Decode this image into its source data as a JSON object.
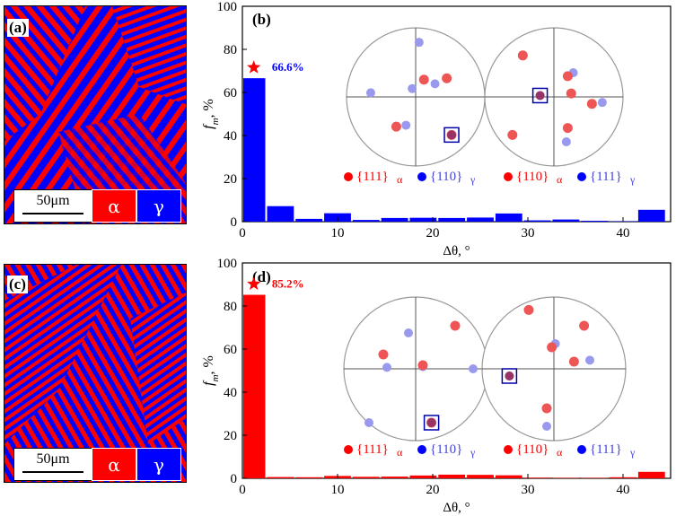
{
  "panels": {
    "a": {
      "label": "(a)",
      "scale_bar": "50μm",
      "phase_alpha": "α",
      "phase_gamma": "γ"
    },
    "c": {
      "label": "(c)",
      "scale_bar": "50μm",
      "phase_alpha": "α",
      "phase_gamma": "γ"
    }
  },
  "colors": {
    "alpha": "#ff0000",
    "gamma": "#0000ff",
    "alpha_light": "#ee5555",
    "gamma_light": "#9999ee"
  },
  "chart_data": [
    {
      "type": "bar",
      "panel": "(b)",
      "xlabel": "Δθ, °",
      "ylabel_main": "f",
      "ylabel_sub": "m",
      "ylabel_unit": ", %",
      "xlim": [
        0,
        45
      ],
      "ylim": [
        0,
        100
      ],
      "xticks": [
        0,
        10,
        20,
        30,
        40
      ],
      "yticks": [
        0,
        20,
        40,
        60,
        80,
        100
      ],
      "bar_color": "#0000ff",
      "bins": [
        [
          0,
          2.5
        ],
        [
          2.5,
          5.5
        ],
        [
          5.5,
          8.5
        ],
        [
          8.5,
          11.5
        ],
        [
          11.5,
          14.5
        ],
        [
          14.5,
          17.5
        ],
        [
          17.5,
          20.5
        ],
        [
          20.5,
          23.5
        ],
        [
          23.5,
          26.5
        ],
        [
          26.5,
          29.5
        ],
        [
          29.5,
          32.5
        ],
        [
          32.5,
          35.5
        ],
        [
          35.5,
          38.5
        ],
        [
          38.5,
          41.5
        ],
        [
          41.5,
          44.5
        ]
      ],
      "values": [
        66.6,
        7.2,
        1.3,
        3.9,
        0.8,
        1.7,
        1.8,
        1.7,
        1.9,
        3.8,
        0.6,
        1.0,
        0.4,
        0.2,
        5.5
      ],
      "annotation": "66.6%",
      "annotation_color": "#0000ff",
      "legend": {
        "left_group": "{111}",
        "left_sub_1": "α",
        "right_group_1": "{110}",
        "left_sub_2": "γ",
        "left_group_2": "{110}",
        "sub_a": "α",
        "right_group_2": "{111}",
        "sub_g": "γ"
      },
      "pole_figures": [
        {
          "red": [
            [
              0.12,
              0.25
            ],
            [
              0.45,
              0.27
            ],
            [
              -0.28,
              -0.43
            ],
            [
              0.52,
              -0.55
            ]
          ],
          "blue": [
            [
              0.05,
              0.79
            ],
            [
              -0.05,
              0.12
            ],
            [
              -0.65,
              0.06
            ],
            [
              0.28,
              0.19
            ],
            [
              -0.14,
              -0.41
            ]
          ],
          "boxed": [
            0.52,
            -0.55
          ]
        },
        {
          "red": [
            [
              -0.45,
              0.6
            ],
            [
              0.2,
              0.3
            ],
            [
              0.25,
              0.05
            ],
            [
              0.55,
              -0.1
            ],
            [
              -0.6,
              -0.55
            ],
            [
              0.2,
              -0.45
            ]
          ],
          "blue": [
            [
              0.28,
              0.35
            ],
            [
              0.7,
              -0.08
            ],
            [
              0.18,
              -0.65
            ],
            [
              -0.2,
              0.02
            ]
          ],
          "boxed": [
            -0.2,
            0.02
          ]
        }
      ]
    },
    {
      "type": "bar",
      "panel": "(d)",
      "xlabel": "Δθ, °",
      "ylabel_main": "f",
      "ylabel_sub": "m",
      "ylabel_unit": ", %",
      "xlim": [
        0,
        45
      ],
      "ylim": [
        0,
        100
      ],
      "xticks": [
        0,
        10,
        20,
        30,
        40
      ],
      "yticks": [
        0,
        20,
        40,
        60,
        80,
        100
      ],
      "bar_color": "#ff0000",
      "bins": [
        [
          0,
          2.5
        ],
        [
          2.5,
          5.5
        ],
        [
          5.5,
          8.5
        ],
        [
          8.5,
          11.5
        ],
        [
          11.5,
          14.5
        ],
        [
          14.5,
          17.5
        ],
        [
          17.5,
          20.5
        ],
        [
          20.5,
          23.5
        ],
        [
          23.5,
          26.5
        ],
        [
          26.5,
          29.5
        ],
        [
          29.5,
          32.5
        ],
        [
          32.5,
          35.5
        ],
        [
          35.5,
          38.5
        ],
        [
          38.5,
          41.5
        ],
        [
          41.5,
          44.5
        ]
      ],
      "values": [
        85.2,
        0.6,
        0.5,
        1.1,
        0.7,
        0.8,
        1.3,
        1.7,
        1.6,
        1.4,
        0.3,
        0.2,
        0.2,
        0.5,
        3.0
      ],
      "annotation": "85.2%",
      "annotation_color": "#ff0000",
      "legend": {
        "left_group": "{111}",
        "left_sub_1": "α",
        "right_group_1": "{110}",
        "left_sub_2": "γ",
        "left_group_2": "{110}",
        "sub_a": "α",
        "right_group_2": "{111}",
        "sub_g": "γ"
      },
      "pole_figures": [
        {
          "red": [
            [
              -0.45,
              0.2
            ],
            [
              0.1,
              0.05
            ],
            [
              0.55,
              0.6
            ],
            [
              0.22,
              -0.75
            ]
          ],
          "blue": [
            [
              -0.1,
              0.5
            ],
            [
              -0.4,
              0.02
            ],
            [
              0.1,
              0.03
            ],
            [
              0.8,
              0.0
            ],
            [
              -0.65,
              -0.75
            ]
          ],
          "boxed": [
            0.22,
            -0.75
          ]
        },
        {
          "red": [
            [
              -0.35,
              0.82
            ],
            [
              0.42,
              0.6
            ],
            [
              -0.03,
              0.3
            ],
            [
              0.28,
              0.1
            ],
            [
              -0.1,
              -0.55
            ]
          ],
          "blue": [
            [
              0.02,
              0.35
            ],
            [
              0.5,
              0.12
            ],
            [
              -0.62,
              -0.1
            ],
            [
              -0.1,
              -0.8
            ]
          ],
          "boxed": [
            -0.62,
            -0.1
          ]
        }
      ]
    }
  ]
}
